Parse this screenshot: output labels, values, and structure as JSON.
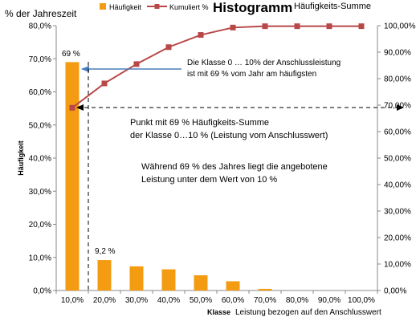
{
  "chart_data": {
    "type": "bar+line",
    "title": "Histogramm",
    "subtitle": "Häufigkeits-Summe",
    "left_axis_title": "% der Jahreszeit",
    "ylabel": "Häufigkeit",
    "xlabel_bold": "Klasse",
    "xlabel": "Leistung bezogen auf den Anschlusswert",
    "categories": [
      "10,0%",
      "20,0%",
      "30,0%",
      "40,0%",
      "50,0%",
      "60,0%",
      "70,0%",
      "80,0%",
      "90,0%",
      "100,0%"
    ],
    "series": [
      {
        "name": "Häufigkeit",
        "type": "bar",
        "axis": "left",
        "values": [
          69,
          9.2,
          7.3,
          6.4,
          4.6,
          2.8,
          0.5,
          0,
          0,
          0
        ]
      },
      {
        "name": "Kumuliert %",
        "type": "line",
        "axis": "right",
        "values": [
          69,
          78.2,
          85.5,
          91.9,
          96.5,
          99.3,
          99.8,
          99.8,
          99.8,
          99.8
        ]
      }
    ],
    "ylim_left": [
      0,
      80
    ],
    "left_ticks": [
      "0,0%",
      "10,0%",
      "20,0%",
      "30,0%",
      "40,0%",
      "50,0%",
      "60,0%",
      "70,0%",
      "80,0%"
    ],
    "ylim_right": [
      0,
      100
    ],
    "right_ticks": [
      "0,00%",
      "10,00%",
      "20,00%",
      "30,00%",
      "40,00%",
      "50,00%",
      "60,00%",
      "70,00%",
      "80,00%",
      "90,00%",
      "100,00%"
    ],
    "data_labels": [
      "69 %",
      "9,2 %"
    ],
    "legend_position": "top",
    "colors": {
      "bars": "#F39C12",
      "line": "#B84848",
      "arrow": "#4A7EBB"
    },
    "annotations": {
      "arrow1_line1": "Die Klasse  0 … 10% der Anschlussleistung",
      "arrow1_line2": "ist mit 69 % vom Jahr am häufigsten",
      "point_line1": "Punkt mit 69 % Häufigkeits-Summe",
      "point_line2": "der Klasse 0…10 %  (Leistung vom Anschlusswert)",
      "note_line1": "Während 69 % des Jahres liegt die angebotene",
      "note_line2": "Leistung unter dem Wert von 10 %"
    }
  }
}
